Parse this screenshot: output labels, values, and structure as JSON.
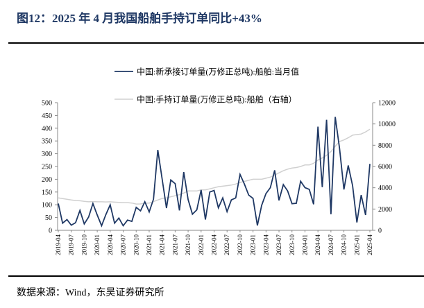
{
  "title": "图12：2025 年 4 月我国船舶手持订单同比+43%",
  "source": "数据来源：Wind，东吴证券研究所",
  "chart_data": {
    "type": "line",
    "title": "图12：2025 年 4 月我国船舶手持订单同比+43%",
    "legend_position": "top-center",
    "grid": false,
    "x": [
      "2019-04",
      "2019-05",
      "2019-06",
      "2019-07",
      "2019-08",
      "2019-09",
      "2019-10",
      "2019-11",
      "2019-12",
      "2020-01",
      "2020-02",
      "2020-03",
      "2020-04",
      "2020-05",
      "2020-06",
      "2020-07",
      "2020-08",
      "2020-09",
      "2020-10",
      "2020-11",
      "2020-12",
      "2021-01",
      "2021-02",
      "2021-03",
      "2021-04",
      "2021-05",
      "2021-06",
      "2021-07",
      "2021-08",
      "2021-09",
      "2021-10",
      "2021-11",
      "2021-12",
      "2022-01",
      "2022-02",
      "2022-03",
      "2022-04",
      "2022-05",
      "2022-06",
      "2022-07",
      "2022-08",
      "2022-09",
      "2022-10",
      "2022-11",
      "2022-12",
      "2023-01",
      "2023-02",
      "2023-03",
      "2023-04",
      "2023-05",
      "2023-06",
      "2023-07",
      "2023-08",
      "2023-09",
      "2023-10",
      "2023-11",
      "2023-12",
      "2024-01",
      "2024-02",
      "2024-03",
      "2024-04",
      "2024-05",
      "2024-06",
      "2024-07",
      "2024-08",
      "2024-09",
      "2024-10",
      "2024-11",
      "2024-12",
      "2025-01",
      "2025-02",
      "2025-03",
      "2025-04"
    ],
    "x_tick_labels": [
      "2019-04",
      "2019-07",
      "2019-10",
      "2020-01",
      "2020-04",
      "2020-07",
      "2020-10",
      "2021-01",
      "2021-04",
      "2021-07",
      "2021-10",
      "2022-01",
      "2022-04",
      "2022-07",
      "2022-10",
      "2023-01",
      "2023-04",
      "2023-07",
      "2023-10",
      "2024-01",
      "2024-04",
      "2024-07",
      "2024-10",
      "2025-01",
      "2025-04"
    ],
    "y_left": {
      "range": [
        0,
        500
      ],
      "ticks": [
        "0",
        "50",
        "100",
        "150",
        "200",
        "250",
        "300",
        "350",
        "400",
        "450",
        "500"
      ]
    },
    "y_right": {
      "range": [
        0,
        12000
      ],
      "ticks": [
        "0",
        "2000",
        "4000",
        "6000",
        "8000",
        "10000",
        "12000"
      ]
    },
    "series": [
      {
        "name": "中国:新承接订单量(万修正总吨):船舶:当月值",
        "axis": "left",
        "color": "#1f3864",
        "values": [
          105,
          28,
          42,
          20,
          30,
          78,
          25,
          52,
          105,
          60,
          18,
          62,
          100,
          28,
          48,
          18,
          40,
          35,
          90,
          76,
          112,
          72,
          122,
          315,
          200,
          87,
          197,
          183,
          78,
          228,
          120,
          63,
          80,
          158,
          42,
          150,
          156,
          88,
          127,
          73,
          119,
          127,
          219,
          181,
          138,
          125,
          19,
          98,
          144,
          167,
          235,
          117,
          179,
          154,
          104,
          106,
          192,
          167,
          160,
          102,
          406,
          169,
          433,
          63,
          444,
          321,
          160,
          254,
          175,
          31,
          138,
          60,
          260
        ]
      },
      {
        "name": "中国:手持订单量(万修正总吨):船舶（右轴）",
        "axis": "right",
        "color": "#d0d0d0",
        "values": [
          3050,
          2980,
          2920,
          2850,
          2800,
          2780,
          2720,
          2680,
          2700,
          2680,
          2680,
          2670,
          2680,
          2650,
          2620,
          2600,
          2600,
          2560,
          2470,
          2480,
          2550,
          2560,
          2700,
          2850,
          3000,
          3050,
          3150,
          3250,
          3350,
          3500,
          3700,
          3700,
          3700,
          3800,
          3800,
          3900,
          4000,
          4100,
          4150,
          4200,
          4250,
          4350,
          4500,
          4600,
          4700,
          4800,
          4800,
          4800,
          4900,
          5000,
          5200,
          5400,
          5600,
          5750,
          5850,
          5900,
          6000,
          6150,
          6150,
          6300,
          6600,
          6800,
          7050,
          7400,
          7900,
          8350,
          8500,
          8700,
          8950,
          9000,
          9050,
          9250,
          9500
        ]
      }
    ]
  }
}
